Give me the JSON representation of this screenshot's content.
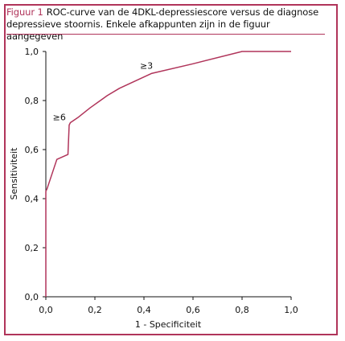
{
  "caption": {
    "label": "Figuur 1",
    "text": "ROC-curve van de 4DKL-depressiescore versus de diagnose depressieve stoornis. Enkele afkappunten zijn in de figuur aangegeven"
  },
  "colors": {
    "accent": "#b0345a",
    "curve": "#b0345a",
    "axis": "#111111"
  },
  "chart_data": {
    "type": "line",
    "xlabel": "1 - Specificiteit",
    "ylabel": "Sensitiviteit",
    "xlim": [
      0,
      1
    ],
    "ylim": [
      0,
      1
    ],
    "grid": false,
    "x_ticks": [
      "0,0",
      "0,2",
      "0,4",
      "0,6",
      "0,8",
      "1,0"
    ],
    "y_ticks": [
      "0,0",
      "0,2",
      "0,4",
      "0,6",
      "0,8",
      "1,0"
    ],
    "series": [
      {
        "x": [
          0.0,
          0.0,
          0.005,
          0.045,
          0.09,
          0.095,
          0.1,
          0.13,
          0.18,
          0.25,
          0.3,
          0.43,
          0.6,
          0.8,
          1.0
        ],
        "y": [
          0.0,
          0.43,
          0.44,
          0.56,
          0.58,
          0.7,
          0.71,
          0.73,
          0.77,
          0.82,
          0.85,
          0.91,
          0.95,
          1.0,
          1.0
        ]
      }
    ],
    "annotations": [
      {
        "text": "≥6",
        "x": 0.055,
        "y": 0.72
      },
      {
        "text": "≥3",
        "x": 0.41,
        "y": 0.93
      }
    ]
  }
}
